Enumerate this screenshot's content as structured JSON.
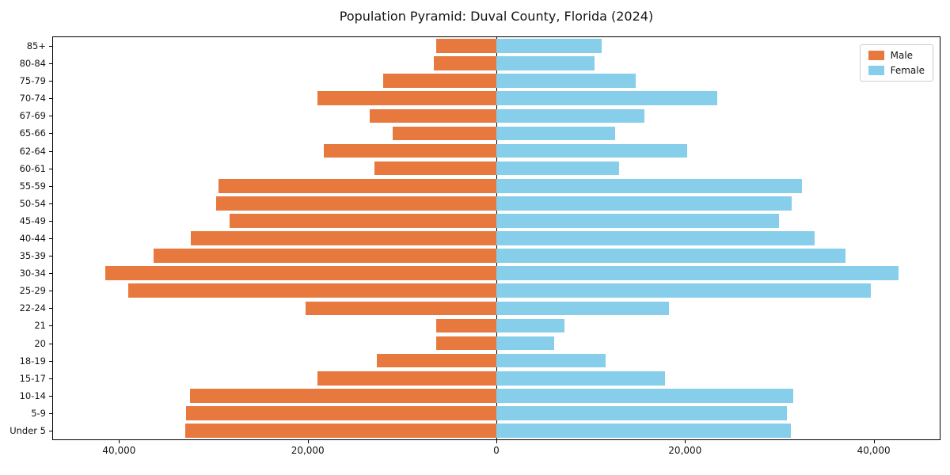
{
  "title": "Population Pyramid: Duval County, Florida (2024)",
  "legend": {
    "male_label": "Male",
    "female_label": "Female"
  },
  "colors": {
    "male": "#e8793e",
    "female": "#87ceeb",
    "axis": "#000000",
    "background": "#ffffff"
  },
  "chart_data": {
    "type": "bar",
    "subtype": "population-pyramid",
    "orientation": "horizontal",
    "title": "Population Pyramid: Duval County, Florida (2024)",
    "categories": [
      "85+",
      "80-84",
      "75-79",
      "70-74",
      "67-69",
      "65-66",
      "62-64",
      "60-61",
      "55-59",
      "50-54",
      "45-49",
      "40-44",
      "35-39",
      "30-34",
      "25-29",
      "22-24",
      "21",
      "20",
      "18-19",
      "15-17",
      "10-14",
      "5-9",
      "Under 5"
    ],
    "series": [
      {
        "name": "Male",
        "color": "#e8793e",
        "direction": "left",
        "values": [
          6400,
          6600,
          12000,
          19000,
          13400,
          11000,
          18300,
          12900,
          29500,
          29700,
          28300,
          32400,
          36300,
          41500,
          39000,
          20200,
          6400,
          6400,
          12700,
          19000,
          32500,
          32900,
          33000
        ]
      },
      {
        "name": "Female",
        "color": "#87ceeb",
        "direction": "right",
        "values": [
          11200,
          10400,
          14800,
          23400,
          15700,
          12600,
          20200,
          13000,
          32400,
          31300,
          30000,
          33700,
          37000,
          42600,
          39700,
          18300,
          7200,
          6100,
          11600,
          17900,
          31500,
          30800,
          31200
        ]
      }
    ],
    "x_ticks": [
      {
        "value": -40000,
        "label": "40,000"
      },
      {
        "value": -20000,
        "label": "20,000"
      },
      {
        "value": 0,
        "label": "0"
      },
      {
        "value": 20000,
        "label": "20,000"
      },
      {
        "value": 40000,
        "label": "40,000"
      }
    ],
    "xlim": [
      -47000,
      47000
    ],
    "xlabel": "",
    "ylabel": "",
    "grid": false,
    "legend_position": "upper right"
  }
}
